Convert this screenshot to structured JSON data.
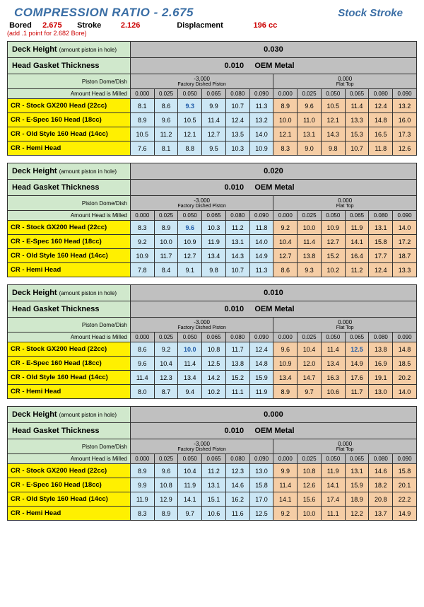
{
  "header": {
    "title": "COMPRESSION RATIO - 2.675",
    "stock": "Stock Stroke",
    "bored_lbl": "Bored",
    "bored": "2.675",
    "stroke_lbl": "Stroke",
    "stroke": "2.126",
    "disp_lbl": "Displacment",
    "disp": "196 cc",
    "note": "(add .1 point for 2.682 Bore)"
  },
  "labels": {
    "deck": "Deck Height",
    "deck_sub": "(amount piston in hole)",
    "hgt": "Head Gasket Thickness",
    "pdd": "Piston Dome/Dish",
    "dished_top": "-3.000",
    "dished_bot": "Factory Dished Piston",
    "flat_top": "0.000",
    "flat_bot": "Flat Top",
    "mil": "Amount Head is Milled",
    "oem": "OEM Metal",
    "gasket": "0.010"
  },
  "mills": [
    "0.000",
    "0.025",
    "0.050",
    "0.065",
    "0.080",
    "0.090",
    "0.000",
    "0.025",
    "0.050",
    "0.065",
    "0.080",
    "0.090"
  ],
  "rows": [
    "CR - Stock GX200 Head (22cc)",
    "CR - E-Spec 160 Head (18cc)",
    "CR - Old Style 160 Head (14cc)",
    "CR - Hemi Head"
  ],
  "blocks": [
    {
      "deck": "0.030",
      "hi": [
        2,
        2,
        0,
        2,
        2,
        2,
        2,
        2,
        2,
        2,
        2,
        2
      ],
      "data": [
        [
          "8.1",
          "8.6",
          "9.3",
          "9.9",
          "10.7",
          "11.3",
          "8.9",
          "9.6",
          "10.5",
          "11.4",
          "12.4",
          "13.2"
        ],
        [
          "8.9",
          "9.6",
          "10.5",
          "11.4",
          "12.4",
          "13.2",
          "10.0",
          "11.0",
          "12.1",
          "13.3",
          "14.8",
          "16.0"
        ],
        [
          "10.5",
          "11.2",
          "12.1",
          "12.7",
          "13.5",
          "14.0",
          "12.1",
          "13.1",
          "14.3",
          "15.3",
          "16.5",
          "17.3"
        ],
        [
          "7.6",
          "8.1",
          "8.8",
          "9.5",
          "10.3",
          "10.9",
          "8.3",
          "9.0",
          "9.8",
          "10.7",
          "11.8",
          "12.6"
        ]
      ]
    },
    {
      "deck": "0.020",
      "hi": [
        2,
        2,
        0,
        2,
        2,
        2,
        2,
        2,
        2,
        2,
        2,
        2
      ],
      "data": [
        [
          "8.3",
          "8.9",
          "9.6",
          "10.3",
          "11.2",
          "11.8",
          "9.2",
          "10.0",
          "10.9",
          "11.9",
          "13.1",
          "14.0"
        ],
        [
          "9.2",
          "10.0",
          "10.9",
          "11.9",
          "13.1",
          "14.0",
          "10.4",
          "11.4",
          "12.7",
          "14.1",
          "15.8",
          "17.2"
        ],
        [
          "10.9",
          "11.7",
          "12.7",
          "13.4",
          "14.3",
          "14.9",
          "12.7",
          "13.8",
          "15.2",
          "16.4",
          "17.7",
          "18.7"
        ],
        [
          "7.8",
          "8.4",
          "9.1",
          "9.8",
          "10.7",
          "11.3",
          "8.6",
          "9.3",
          "10.2",
          "11.2",
          "12.4",
          "13.3"
        ]
      ]
    },
    {
      "deck": "0.010",
      "hi": [
        2,
        2,
        0,
        2,
        2,
        2,
        2,
        2,
        2,
        0,
        2,
        2
      ],
      "data": [
        [
          "8.6",
          "9.2",
          "10.0",
          "10.8",
          "11.7",
          "12.4",
          "9.6",
          "10.4",
          "11.4",
          "12.5",
          "13.8",
          "14.8"
        ],
        [
          "9.6",
          "10.4",
          "11.4",
          "12.5",
          "13.8",
          "14.8",
          "10.9",
          "12.0",
          "13.4",
          "14.9",
          "16.9",
          "18.5"
        ],
        [
          "11.4",
          "12.3",
          "13.4",
          "14.2",
          "15.2",
          "15.9",
          "13.4",
          "14.7",
          "16.3",
          "17.6",
          "19.1",
          "20.2"
        ],
        [
          "8.0",
          "8.7",
          "9.4",
          "10.2",
          "11.1",
          "11.9",
          "8.9",
          "9.7",
          "10.6",
          "11.7",
          "13.0",
          "14.0"
        ]
      ]
    },
    {
      "deck": "0.000",
      "hi": [
        2,
        2,
        2,
        2,
        2,
        2,
        2,
        2,
        2,
        2,
        2,
        2
      ],
      "data": [
        [
          "8.9",
          "9.6",
          "10.4",
          "11.2",
          "12.3",
          "13.0",
          "9.9",
          "10.8",
          "11.9",
          "13.1",
          "14.6",
          "15.8"
        ],
        [
          "9.9",
          "10.8",
          "11.9",
          "13.1",
          "14.6",
          "15.8",
          "11.4",
          "12.6",
          "14.1",
          "15.9",
          "18.2",
          "20.1"
        ],
        [
          "11.9",
          "12.9",
          "14.1",
          "15.1",
          "16.2",
          "17.0",
          "14.1",
          "15.6",
          "17.4",
          "18.9",
          "20.8",
          "22.2"
        ],
        [
          "8.3",
          "8.9",
          "9.7",
          "10.6",
          "11.6",
          "12.5",
          "9.2",
          "10.0",
          "11.1",
          "12.2",
          "13.7",
          "14.9"
        ]
      ]
    }
  ]
}
